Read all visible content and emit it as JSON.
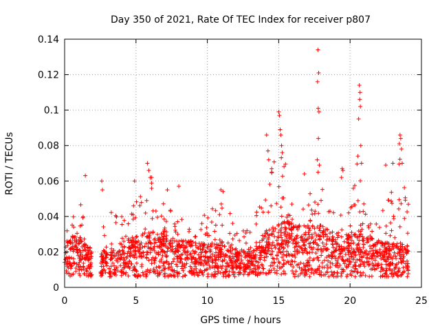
{
  "chart_data": {
    "type": "scatter",
    "title": "Day 350 of 2021, Rate Of TEC Index for receiver p807",
    "xlabel": "GPS time / hours",
    "ylabel": "ROTI / TECUs",
    "xlim": [
      0,
      25
    ],
    "ylim": [
      0,
      0.14
    ],
    "x_ticks": [
      0,
      5,
      10,
      15,
      20,
      25
    ],
    "y_ticks": [
      0,
      0.02,
      0.04,
      0.06,
      0.08,
      0.1,
      0.12,
      0.14
    ],
    "x_tick_labels": [
      "0",
      "5",
      "10",
      "15",
      "20",
      "25"
    ],
    "y_tick_labels": [
      "0",
      "0.02",
      "0.04",
      "0.06",
      "0.08",
      "0.1",
      "0.12",
      "0.14"
    ],
    "grid": true,
    "marker": "+",
    "series_color": "#ff0000",
    "series": [
      {
        "name": "ROTI",
        "envelope_hours": [
          0,
          0.5,
          1,
          1.5,
          2,
          2.5,
          3,
          3.5,
          4,
          4.5,
          5,
          5.5,
          6,
          6.5,
          7,
          7.5,
          8,
          8.5,
          9,
          9.5,
          10,
          10.5,
          11,
          11.5,
          12,
          12.5,
          13,
          13.5,
          14,
          14.5,
          15,
          15.5,
          16,
          16.5,
          17,
          17.5,
          18,
          18.5,
          19,
          19.5,
          20,
          20.5,
          21,
          21.5,
          22,
          22.5,
          23,
          23.5,
          24
        ],
        "typical_roti": [
          0.016,
          0.018,
          0.02,
          0.015,
          0.012,
          0.012,
          0.014,
          0.015,
          0.016,
          0.017,
          0.019,
          0.02,
          0.02,
          0.019,
          0.018,
          0.017,
          0.017,
          0.017,
          0.016,
          0.016,
          0.016,
          0.017,
          0.017,
          0.016,
          0.014,
          0.013,
          0.013,
          0.015,
          0.02,
          0.022,
          0.024,
          0.024,
          0.023,
          0.022,
          0.022,
          0.022,
          0.022,
          0.021,
          0.02,
          0.019,
          0.019,
          0.02,
          0.02,
          0.018,
          0.016,
          0.016,
          0.016,
          0.016,
          0.015
        ],
        "upper_roti": [
          0.04,
          0.043,
          0.05,
          0.04,
          0.03,
          0.04,
          0.04,
          0.045,
          0.04,
          0.045,
          0.05,
          0.055,
          0.065,
          0.05,
          0.05,
          0.05,
          0.05,
          0.045,
          0.045,
          0.045,
          0.045,
          0.048,
          0.05,
          0.045,
          0.035,
          0.035,
          0.035,
          0.045,
          0.06,
          0.07,
          0.09,
          0.07,
          0.055,
          0.05,
          0.055,
          0.05,
          0.06,
          0.05,
          0.05,
          0.045,
          0.045,
          0.08,
          0.06,
          0.04,
          0.045,
          0.05,
          0.06,
          0.075,
          0.06
        ],
        "sample_count": 2200
      }
    ],
    "spikes": [
      {
        "x": 1.45,
        "y": 0.063
      },
      {
        "x": 2.6,
        "y": 0.06
      },
      {
        "x": 2.65,
        "y": 0.055
      },
      {
        "x": 4.9,
        "y": 0.06
      },
      {
        "x": 5.8,
        "y": 0.07
      },
      {
        "x": 5.9,
        "y": 0.066
      },
      {
        "x": 6.0,
        "y": 0.062
      },
      {
        "x": 7.2,
        "y": 0.055
      },
      {
        "x": 8.0,
        "y": 0.057
      },
      {
        "x": 10.95,
        "y": 0.055
      },
      {
        "x": 11.1,
        "y": 0.054
      },
      {
        "x": 14.15,
        "y": 0.086
      },
      {
        "x": 14.25,
        "y": 0.077
      },
      {
        "x": 14.3,
        "y": 0.072
      },
      {
        "x": 15.0,
        "y": 0.099
      },
      {
        "x": 15.05,
        "y": 0.097
      },
      {
        "x": 15.1,
        "y": 0.089
      },
      {
        "x": 15.15,
        "y": 0.086
      },
      {
        "x": 15.2,
        "y": 0.08
      },
      {
        "x": 15.25,
        "y": 0.076
      },
      {
        "x": 16.8,
        "y": 0.064
      },
      {
        "x": 17.75,
        "y": 0.134
      },
      {
        "x": 17.8,
        "y": 0.121
      },
      {
        "x": 17.72,
        "y": 0.116
      },
      {
        "x": 17.77,
        "y": 0.101
      },
      {
        "x": 17.82,
        "y": 0.099
      },
      {
        "x": 17.78,
        "y": 0.084
      },
      {
        "x": 17.7,
        "y": 0.072
      },
      {
        "x": 17.85,
        "y": 0.069
      },
      {
        "x": 17.76,
        "y": 0.065
      },
      {
        "x": 19.45,
        "y": 0.067
      },
      {
        "x": 19.5,
        "y": 0.066
      },
      {
        "x": 19.4,
        "y": 0.062
      },
      {
        "x": 20.65,
        "y": 0.114
      },
      {
        "x": 20.7,
        "y": 0.11
      },
      {
        "x": 20.68,
        "y": 0.106
      },
      {
        "x": 20.72,
        "y": 0.102
      },
      {
        "x": 20.6,
        "y": 0.095
      },
      {
        "x": 20.75,
        "y": 0.08
      },
      {
        "x": 20.55,
        "y": 0.074
      },
      {
        "x": 20.8,
        "y": 0.07
      },
      {
        "x": 22.5,
        "y": 0.069
      },
      {
        "x": 23.0,
        "y": 0.07
      },
      {
        "x": 23.5,
        "y": 0.086
      },
      {
        "x": 23.55,
        "y": 0.084
      },
      {
        "x": 23.45,
        "y": 0.081
      },
      {
        "x": 23.6,
        "y": 0.078
      },
      {
        "x": 23.65,
        "y": 0.07
      }
    ]
  }
}
